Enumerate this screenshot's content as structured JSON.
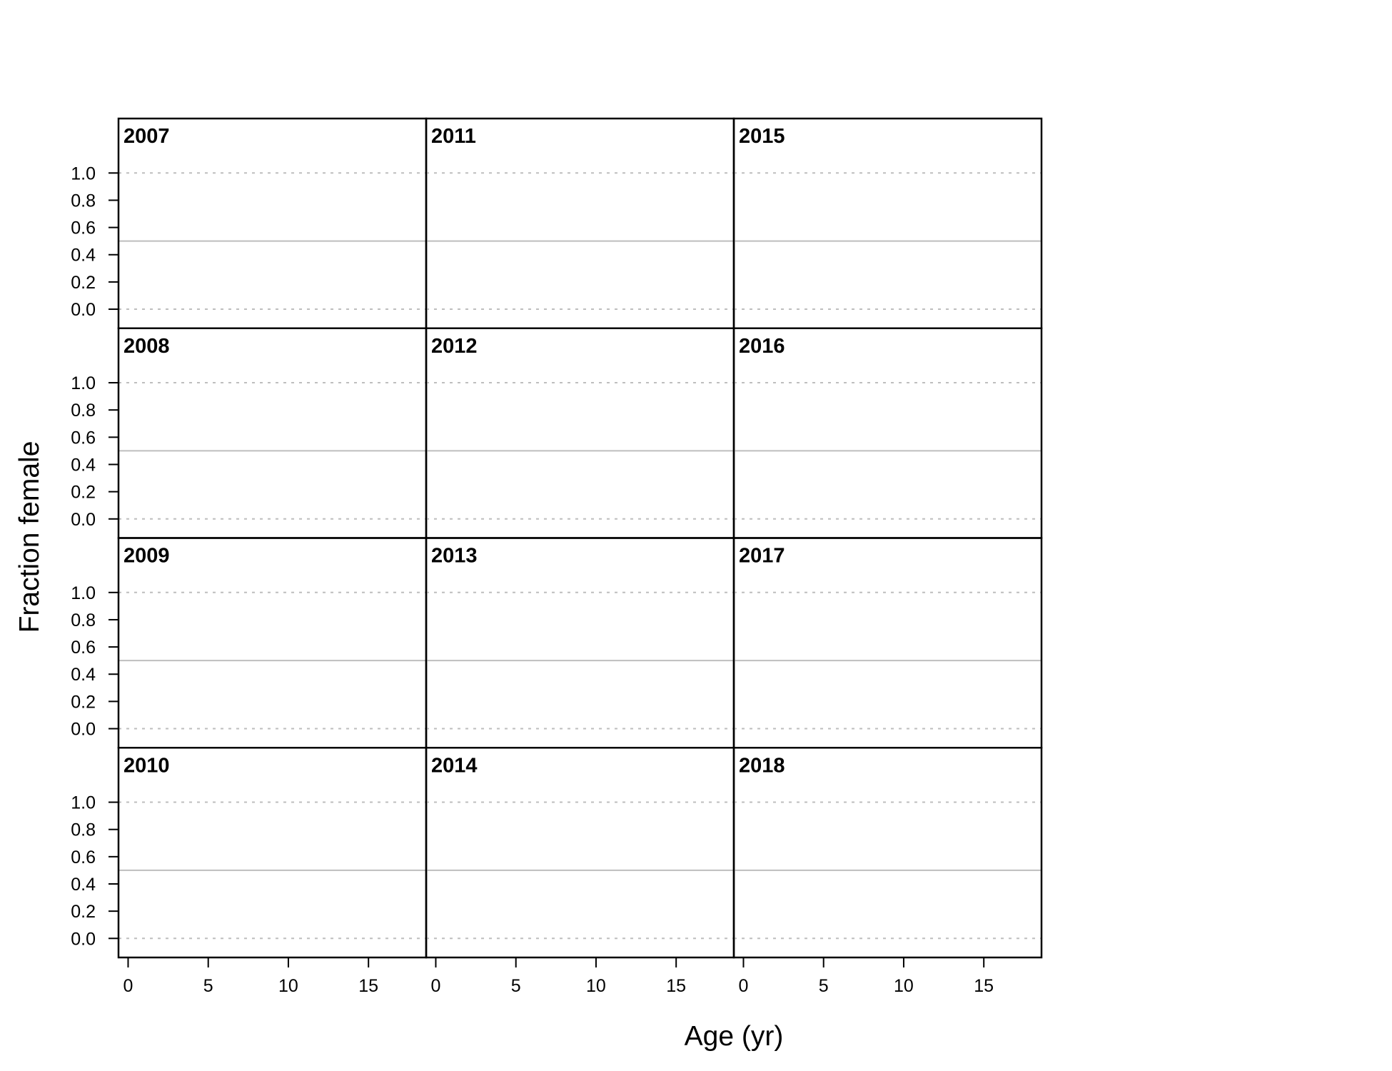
{
  "chart_data": {
    "type": "line",
    "layout": "small-multiples",
    "xlabel": "Age (yr)",
    "ylabel": "Fraction female",
    "xlim": [
      -0.6,
      18.6
    ],
    "ylim": [
      -0.14,
      1.4
    ],
    "xticks": [
      0,
      5,
      10,
      15
    ],
    "yticks": [
      0.0,
      0.2,
      0.4,
      0.6,
      0.8,
      1.0
    ],
    "ytick_labels": [
      "0.0",
      "0.2",
      "0.4",
      "0.6",
      "0.8",
      "1.0"
    ],
    "reference_lines": {
      "dashed": [
        0.0,
        1.0
      ],
      "solid": [
        0.5
      ],
      "color": "#bebebe"
    },
    "panels": [
      {
        "year": "2007",
        "series": []
      },
      {
        "year": "2008",
        "series": []
      },
      {
        "year": "2009",
        "series": []
      },
      {
        "year": "2010",
        "series": []
      },
      {
        "year": "2011",
        "series": []
      },
      {
        "year": "2012",
        "series": []
      },
      {
        "year": "2013",
        "series": []
      },
      {
        "year": "2014",
        "series": []
      },
      {
        "year": "2015",
        "series": []
      },
      {
        "year": "2016",
        "series": []
      },
      {
        "year": "2017",
        "series": []
      },
      {
        "year": "2018",
        "series": []
      }
    ],
    "grid": false
  }
}
